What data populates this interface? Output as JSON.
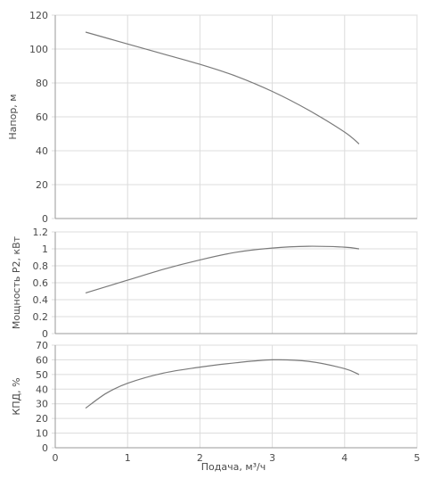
{
  "chart_data": [
    {
      "type": "line",
      "ylabel": "Напор, м",
      "xlim": [
        0,
        5
      ],
      "ylim": [
        0,
        120
      ],
      "yticks": [
        "0",
        "20",
        "40",
        "60",
        "80",
        "100",
        "120"
      ],
      "grid": true,
      "series": [
        {
          "x": [
            0.42,
            1.0,
            1.5,
            2.0,
            2.5,
            3.0,
            3.5,
            4.0,
            4.2
          ],
          "y": [
            110,
            103,
            97,
            91,
            84,
            75,
            64,
            51,
            44
          ]
        }
      ]
    },
    {
      "type": "line",
      "ylabel": "Мощность P2, кВт",
      "xlim": [
        0,
        5
      ],
      "ylim": [
        0,
        1.2
      ],
      "yticks": [
        "0",
        "0.2",
        "0.4",
        "0.6",
        "0.8",
        "1",
        "1.2"
      ],
      "grid": true,
      "series": [
        {
          "x": [
            0.42,
            1.0,
            1.5,
            2.0,
            2.5,
            3.0,
            3.5,
            4.0,
            4.2
          ],
          "y": [
            0.48,
            0.63,
            0.76,
            0.87,
            0.96,
            1.01,
            1.03,
            1.02,
            1.0
          ]
        }
      ]
    },
    {
      "type": "line",
      "xlabel": "Подача, м³/ч",
      "ylabel": "КПД, %",
      "xlim": [
        0,
        5
      ],
      "ylim": [
        0,
        70
      ],
      "xticks": [
        "0",
        "1",
        "2",
        "3",
        "4",
        "5"
      ],
      "yticks": [
        "0",
        "10",
        "20",
        "30",
        "40",
        "50",
        "60",
        "70"
      ],
      "grid": true,
      "series": [
        {
          "x": [
            0.42,
            0.7,
            1.0,
            1.5,
            2.0,
            2.5,
            3.0,
            3.5,
            4.0,
            4.2
          ],
          "y": [
            27,
            37,
            44,
            51,
            55,
            58,
            60,
            59,
            54,
            50
          ]
        }
      ]
    }
  ]
}
